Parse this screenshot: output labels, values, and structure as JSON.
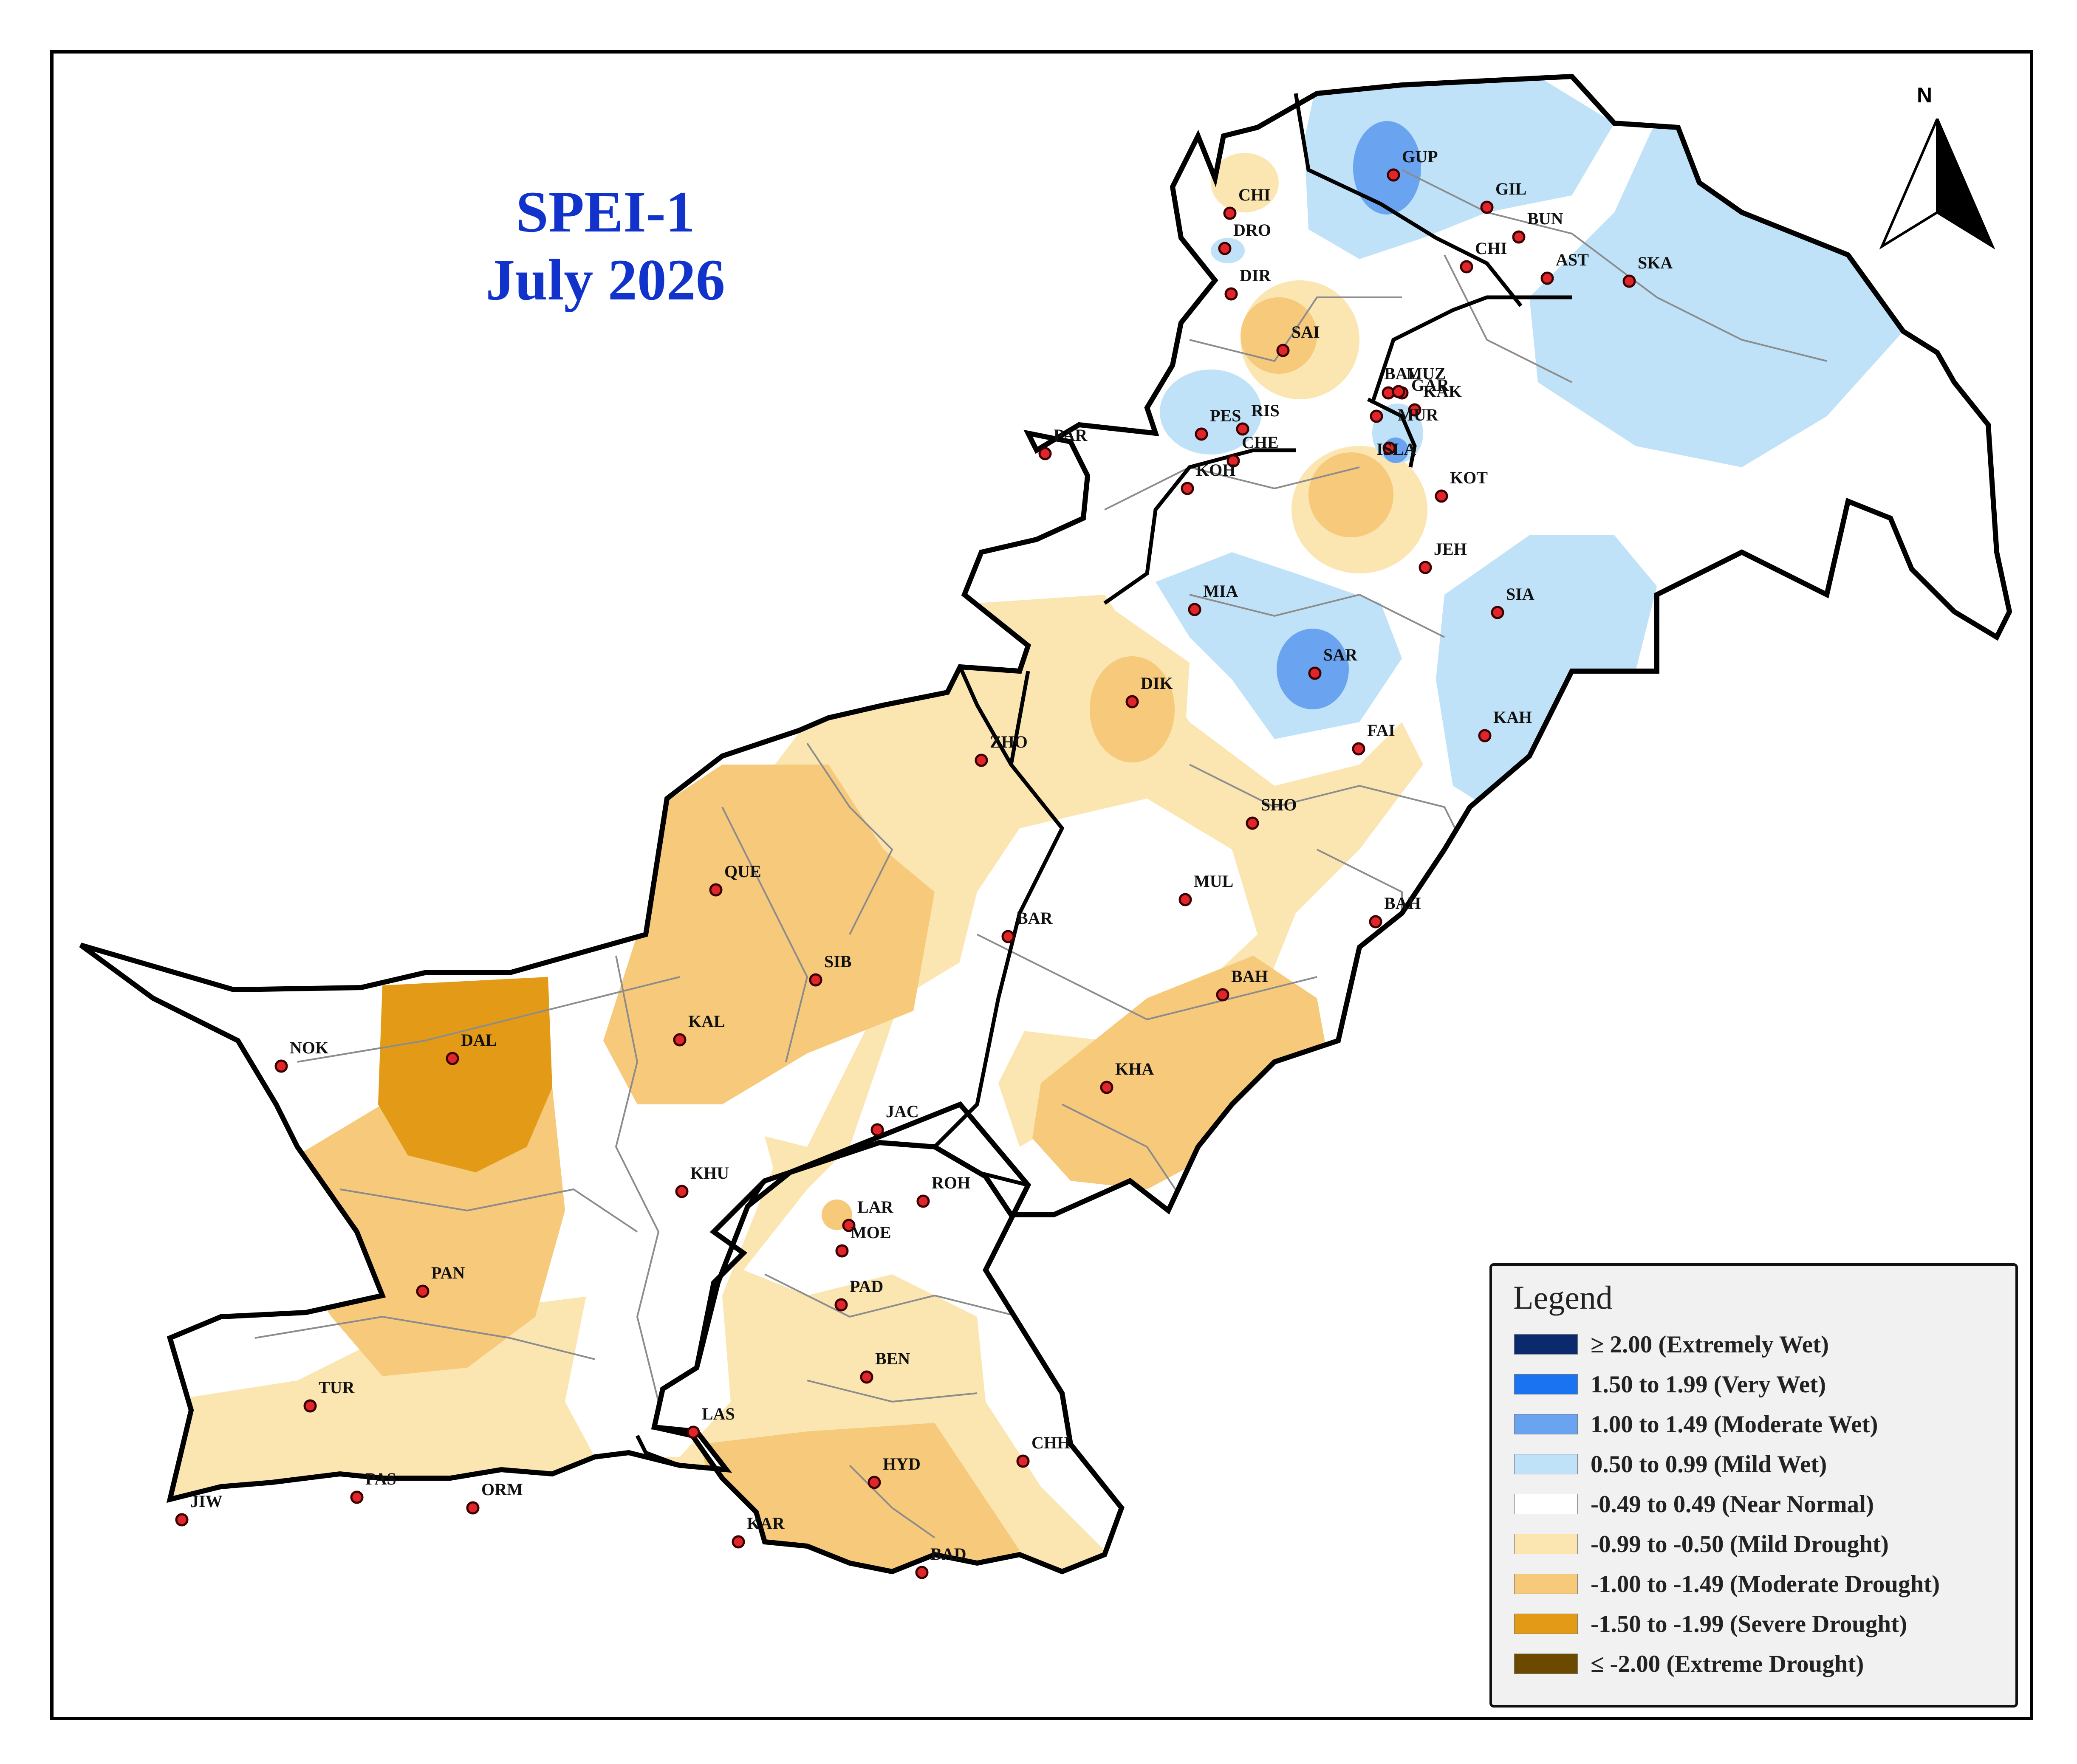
{
  "title": {
    "line1": "SPEI-1",
    "line2": "July 2026"
  },
  "north_arrow": {
    "label": "N"
  },
  "legend": {
    "heading": "Legend",
    "classes": [
      {
        "label": "≥ 2.00 (Extremely Wet)",
        "color": "#0b2a6e"
      },
      {
        "label": "1.50 to 1.99 (Very Wet)",
        "color": "#1a73f0"
      },
      {
        "label": "1.00 to 1.49 (Moderate Wet)",
        "color": "#6aa3ef"
      },
      {
        "label": "0.50 to 0.99 (Mild Wet)",
        "color": "#bfe2f8"
      },
      {
        "label": "-0.49 to 0.49 (Near Normal)",
        "color": "#ffffff"
      },
      {
        "label": "-0.99 to -0.50 (Mild Drought)",
        "color": "#fbe6b2"
      },
      {
        "label": "-1.00 to -1.49 (Moderate Drought)",
        "color": "#f6c97b"
      },
      {
        "label": "-1.50 to -1.99 (Severe Drought)",
        "color": "#e39a16"
      },
      {
        "label": "≤ -2.00 (Extreme Drought)",
        "color": "#6b4a00"
      }
    ]
  },
  "stations": [
    {
      "code": "GUP"
    },
    {
      "code": "GIL"
    },
    {
      "code": "BUN"
    },
    {
      "code": "CHI",
      "id": "chi-north"
    },
    {
      "code": "CHI",
      "id": "chi-gil"
    },
    {
      "code": "AST"
    },
    {
      "code": "SKA"
    },
    {
      "code": "DRO"
    },
    {
      "code": "DIR"
    },
    {
      "code": "SAI"
    },
    {
      "code": "BAL"
    },
    {
      "code": "MUZ"
    },
    {
      "code": "GAR"
    },
    {
      "code": "KAK"
    },
    {
      "code": "PAR",
      "id": "par"
    },
    {
      "code": "PES"
    },
    {
      "code": "RIS"
    },
    {
      "code": "CHE"
    },
    {
      "code": "KOH"
    },
    {
      "code": "MUR"
    },
    {
      "code": "ISLA"
    },
    {
      "code": "KOT"
    },
    {
      "code": "JEH"
    },
    {
      "code": "MIA"
    },
    {
      "code": "SIA"
    },
    {
      "code": "SAR"
    },
    {
      "code": "DIK"
    },
    {
      "code": "KAH"
    },
    {
      "code": "FAI"
    },
    {
      "code": "ZHO"
    },
    {
      "code": "SHO"
    },
    {
      "code": "QUE"
    },
    {
      "code": "MUL"
    },
    {
      "code": "BAR"
    },
    {
      "code": "BAH",
      "id": "bah-north"
    },
    {
      "code": "SIB"
    },
    {
      "code": "BAH",
      "id": "bah-south"
    },
    {
      "code": "NOK"
    },
    {
      "code": "DAL"
    },
    {
      "code": "KAL"
    },
    {
      "code": "KHA"
    },
    {
      "code": "JAC"
    },
    {
      "code": "KHU"
    },
    {
      "code": "ROH"
    },
    {
      "code": "LAR"
    },
    {
      "code": "MOE"
    },
    {
      "code": "PAN"
    },
    {
      "code": "PAD"
    },
    {
      "code": "BEN"
    },
    {
      "code": "TUR"
    },
    {
      "code": "LAS"
    },
    {
      "code": "CHH"
    },
    {
      "code": "HYD"
    },
    {
      "code": "JIW"
    },
    {
      "code": "PAS"
    },
    {
      "code": "ORM"
    },
    {
      "code": "KAR"
    },
    {
      "code": "BAD"
    }
  ]
}
